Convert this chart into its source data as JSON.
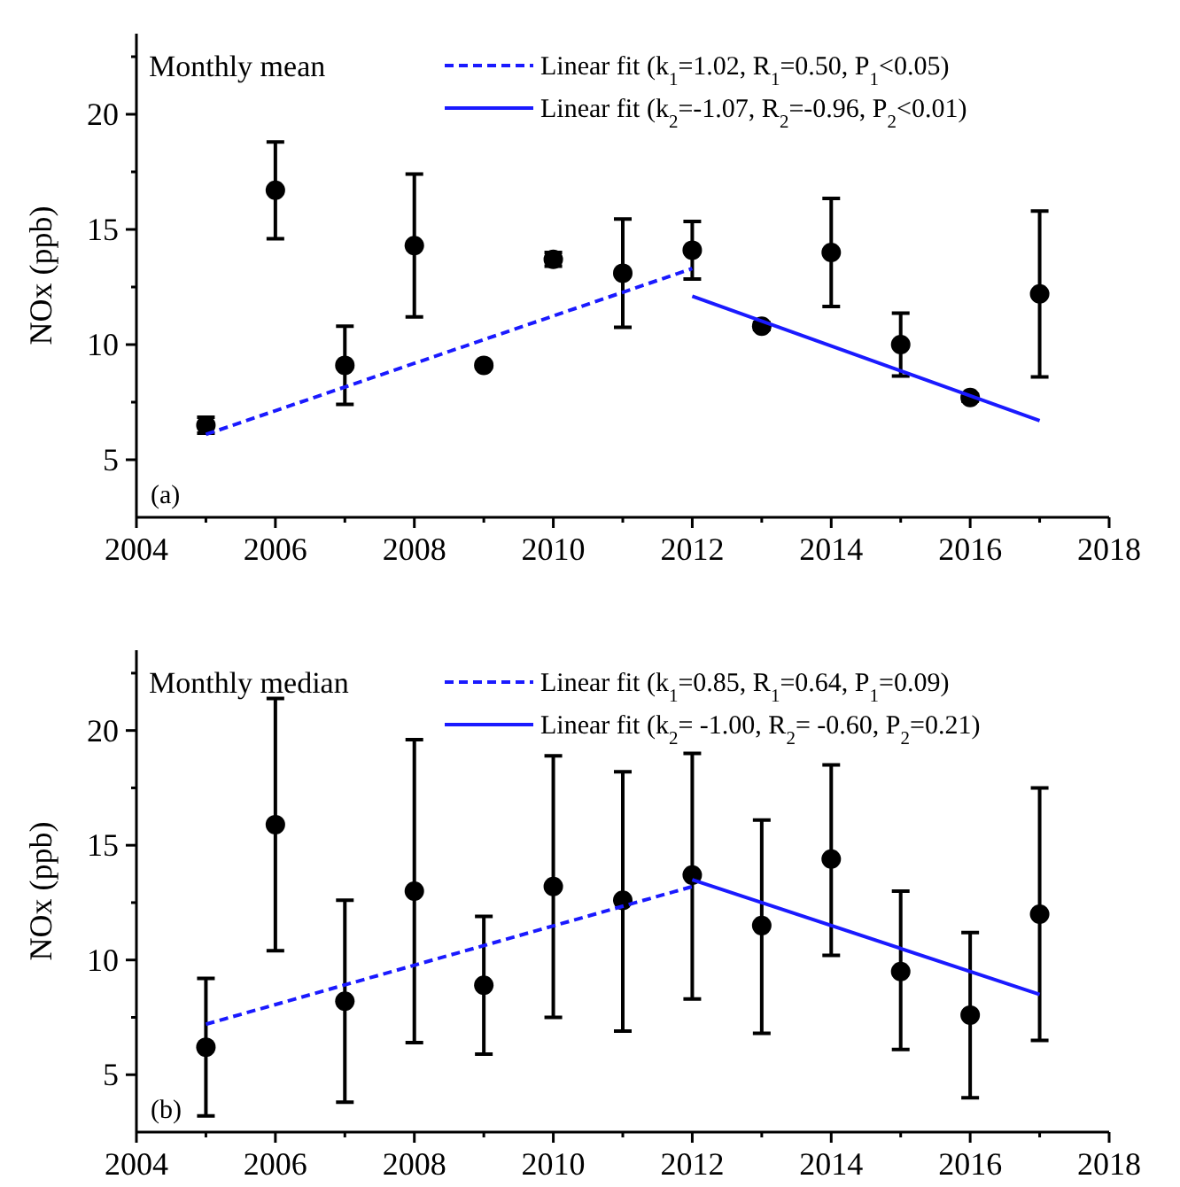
{
  "chart_data": [
    {
      "type": "scatter",
      "title": "Monthly mean",
      "ylabel": "NOx (ppb)",
      "annotations": [
        "(a)"
      ],
      "xlim": [
        2004,
        2018
      ],
      "ylim": [
        2.5,
        23.5
      ],
      "xticks": [
        2004,
        {
          "value": 2005,
          "label": null
        },
        2006,
        {
          "value": 2007,
          "label": null
        },
        2008,
        {
          "value": 2009,
          "label": null
        },
        2010,
        {
          "value": 2011,
          "label": null
        },
        2012,
        {
          "value": 2013,
          "label": null
        },
        2014,
        {
          "value": 2015,
          "label": null
        },
        2016,
        {
          "value": 2017,
          "label": null
        },
        2018
      ],
      "yticks": [
        5,
        {
          "value": 7.5,
          "label": null
        },
        10,
        {
          "value": 12.5,
          "label": null
        },
        15,
        {
          "value": 17.5,
          "label": null
        },
        20,
        {
          "value": 22.5,
          "label": null
        }
      ],
      "legend": "top right",
      "grid": false,
      "series": [
        {
          "marker": "circle",
          "color": "#000000",
          "x": [
            2005,
            2006,
            2007,
            2008,
            2009,
            2010,
            2011,
            2012,
            2013,
            2014,
            2015,
            2016,
            2017
          ],
          "values": [
            6.5,
            16.7,
            9.1,
            14.3,
            9.1,
            13.7,
            13.1,
            14.1,
            10.8,
            14.0,
            10.0,
            7.7,
            12.2
          ],
          "errors": [
            0.35,
            2.1,
            1.7,
            3.1,
            0.1,
            0.3,
            2.35,
            1.25,
            0.15,
            2.35,
            1.37,
            0.15,
            3.6
          ]
        },
        {
          "type": "line",
          "name": "Linear fit (k$_{1}$=1.02, R$_{1}$=0.50, P$_{1}$<0.05)",
          "color": "#1a1aff",
          "line_style": "dashed",
          "x": [
            2005,
            2012
          ],
          "values": [
            6.1,
            13.3
          ]
        },
        {
          "type": "line",
          "name": "Linear fit (k$_{2}$=-1.07, R$_{2}$=-0.96, P$_{2}$<0.01)",
          "color": "#1a1aff",
          "line_style": "solid",
          "x": [
            2012,
            2017
          ],
          "values": [
            12.1,
            6.7
          ]
        }
      ]
    },
    {
      "type": "scatter",
      "title": "Monthly median",
      "ylabel": "NOx (ppb)",
      "annotations": [
        "(b)"
      ],
      "xlim": [
        2004,
        2018
      ],
      "ylim": [
        2.5,
        23.5
      ],
      "xticks": [
        2004,
        {
          "value": 2005,
          "label": null
        },
        2006,
        {
          "value": 2007,
          "label": null
        },
        2008,
        {
          "value": 2009,
          "label": null
        },
        2010,
        {
          "value": 2011,
          "label": null
        },
        2012,
        {
          "value": 2013,
          "label": null
        },
        2014,
        {
          "value": 2015,
          "label": null
        },
        2016,
        {
          "value": 2017,
          "label": null
        },
        2018
      ],
      "yticks": [
        5,
        {
          "value": 7.5,
          "label": null
        },
        10,
        {
          "value": 12.5,
          "label": null
        },
        15,
        {
          "value": 17.5,
          "label": null
        },
        20,
        {
          "value": 22.5,
          "label": null
        }
      ],
      "legend": "top right",
      "grid": false,
      "series": [
        {
          "marker": "circle",
          "color": "#000000",
          "x": [
            2005,
            2006,
            2007,
            2008,
            2009,
            2010,
            2011,
            2012,
            2013,
            2014,
            2015,
            2016,
            2017
          ],
          "values": [
            6.2,
            15.9,
            8.2,
            13.0,
            8.9,
            13.2,
            12.6,
            13.7,
            11.5,
            14.4,
            9.5,
            7.6,
            12.0
          ],
          "errors": [
            [
              3.2,
              9.2
            ],
            [
              10.4,
              21.4
            ],
            [
              3.8,
              12.6
            ],
            [
              6.4,
              19.6
            ],
            [
              5.9,
              11.9
            ],
            [
              7.5,
              18.9
            ],
            [
              6.9,
              18.2
            ],
            [
              8.3,
              19.0
            ],
            [
              6.8,
              16.1
            ],
            [
              10.2,
              18.5
            ],
            [
              6.1,
              13.0
            ],
            [
              4.0,
              11.2
            ],
            [
              6.5,
              17.5
            ]
          ]
        },
        {
          "type": "line",
          "name": "Linear fit (k$_{1}$=0.85, R$_{1}$=0.64, P$_{1}$=0.09)",
          "color": "#1a1aff",
          "line_style": "dashed",
          "x": [
            2005,
            2012
          ],
          "values": [
            7.2,
            13.2
          ]
        },
        {
          "type": "line",
          "name": "Linear fit (k$_{2}$= -1.00, R$_{2}$= -0.60, P$_{2}$=0.21)",
          "color": "#1a1aff",
          "line_style": "solid",
          "x": [
            2012,
            2017
          ],
          "values": [
            13.5,
            8.5
          ]
        }
      ]
    }
  ]
}
